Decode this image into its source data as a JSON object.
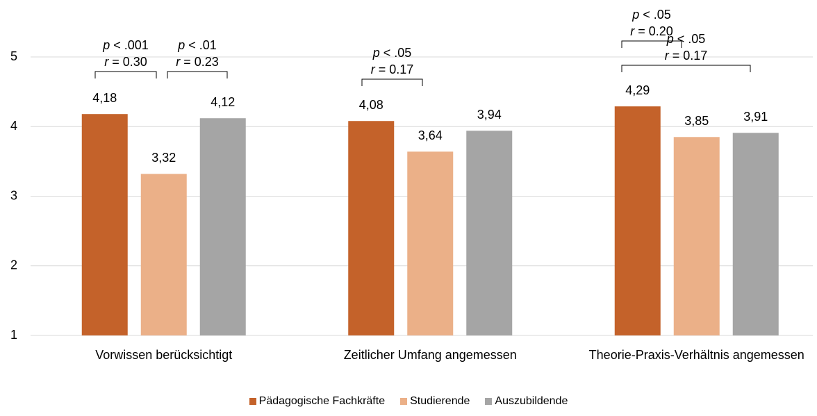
{
  "chart_data": {
    "type": "bar",
    "categories": [
      "Vorwissen berücksichtigt",
      "Zeitlicher Umfang angemessen",
      "Theorie-Praxis-Verhältnis angemessen"
    ],
    "series": [
      {
        "name": "Pädagogische Fachkräfte",
        "color": "#c4622a",
        "values": [
          4.18,
          4.08,
          4.29
        ],
        "value_labels": [
          "4,18",
          "4,08",
          "4,29"
        ]
      },
      {
        "name": "Studierende",
        "color": "#ebb088",
        "values": [
          3.32,
          3.64,
          3.85
        ],
        "value_labels": [
          "3,32",
          "3,64",
          "3,85"
        ]
      },
      {
        "name": "Auszubildende",
        "color": "#a5a5a5",
        "values": [
          4.12,
          3.94,
          3.91
        ],
        "value_labels": [
          "4,12",
          "3,94",
          "3,91"
        ]
      }
    ],
    "ylim": [
      1,
      5
    ],
    "yticks": [
      1,
      2,
      3,
      4,
      5
    ],
    "grid": true,
    "legend": "bottom",
    "annotations": [
      {
        "lines": [
          "p < .001",
          "r = 0.30"
        ]
      },
      {
        "lines": [
          "p < .01",
          "r = 0.23"
        ]
      },
      {
        "lines": [
          "p < .05",
          "r = 0.17"
        ]
      },
      {
        "lines": [
          "p < .05",
          "r = 0.20"
        ]
      },
      {
        "lines": [
          "p < .05",
          "r = 0.17"
        ]
      }
    ]
  }
}
